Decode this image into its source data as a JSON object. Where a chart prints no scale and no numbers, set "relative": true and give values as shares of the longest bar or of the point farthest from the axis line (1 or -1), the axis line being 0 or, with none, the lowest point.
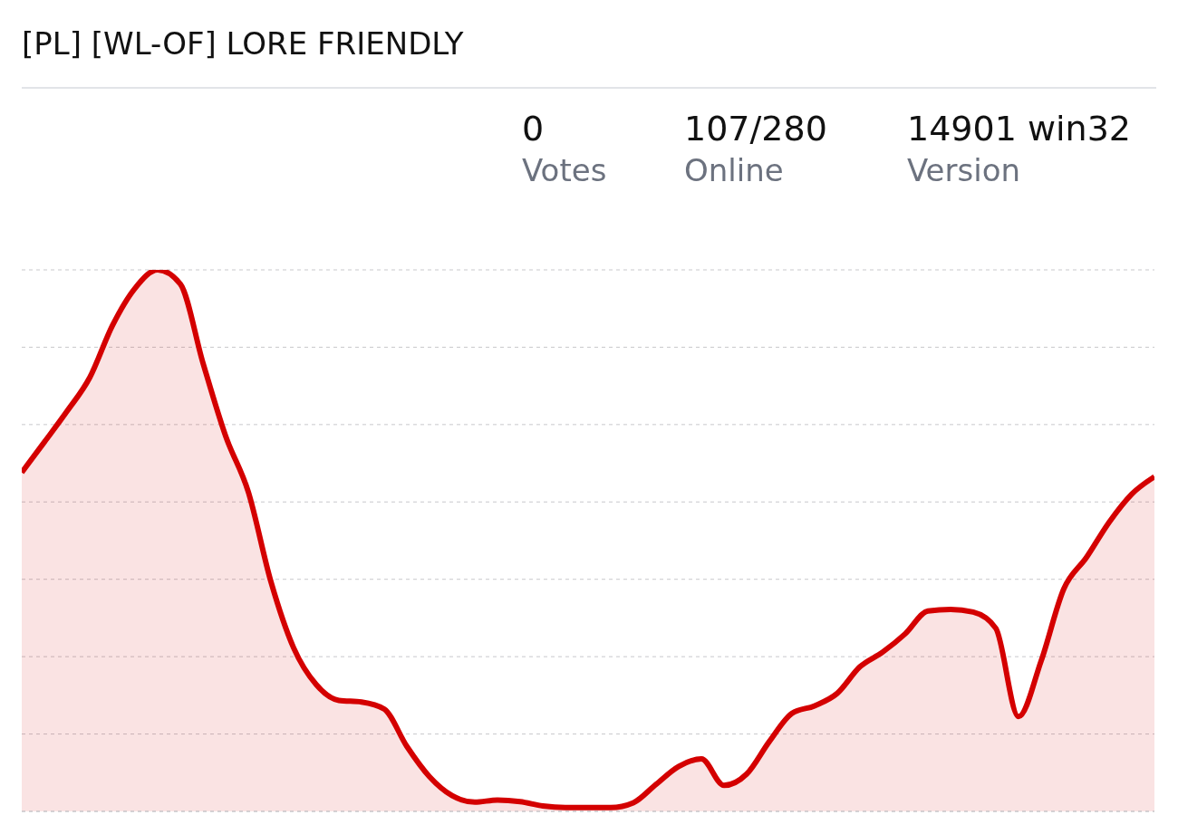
{
  "chart_data": {
    "type": "area",
    "title": "[PL] [WL-OF] LORE FRIENDLY",
    "annotations": [
      "0",
      "Votes",
      "107/280",
      "Online",
      "14901 win32",
      "Version"
    ],
    "relative": true,
    "grid": "y",
    "color": "#d40000",
    "categories": [
      null,
      null,
      null,
      null,
      null,
      null,
      null,
      null,
      null,
      null,
      null,
      null,
      null,
      null,
      null,
      null,
      null,
      null,
      null,
      null,
      null,
      null,
      null,
      null,
      null,
      null,
      null,
      null,
      null,
      null,
      null,
      null,
      null,
      null,
      null,
      null,
      null,
      null,
      null,
      null,
      null,
      null,
      null,
      null,
      null,
      null,
      null,
      null,
      null,
      null,
      null
    ],
    "values": [
      0.626,
      0.682,
      0.739,
      0.801,
      0.897,
      0.966,
      1,
      0.974,
      0.828,
      0.693,
      0.59,
      0.424,
      0.302,
      0.234,
      0.205,
      0.202,
      0.189,
      0.12,
      0.064,
      0.029,
      0.017,
      0.021,
      0.018,
      0.01,
      0.007,
      0.007,
      0.007,
      0.016,
      0.05,
      0.083,
      0.097,
      0.048,
      0.069,
      0.129,
      0.181,
      0.195,
      0.218,
      0.267,
      0.294,
      0.328,
      0.37,
      0.373,
      0.368,
      0.338,
      0.175,
      0.278,
      0.411,
      0.469,
      0.534,
      0.586,
      0.618
    ]
  }
}
